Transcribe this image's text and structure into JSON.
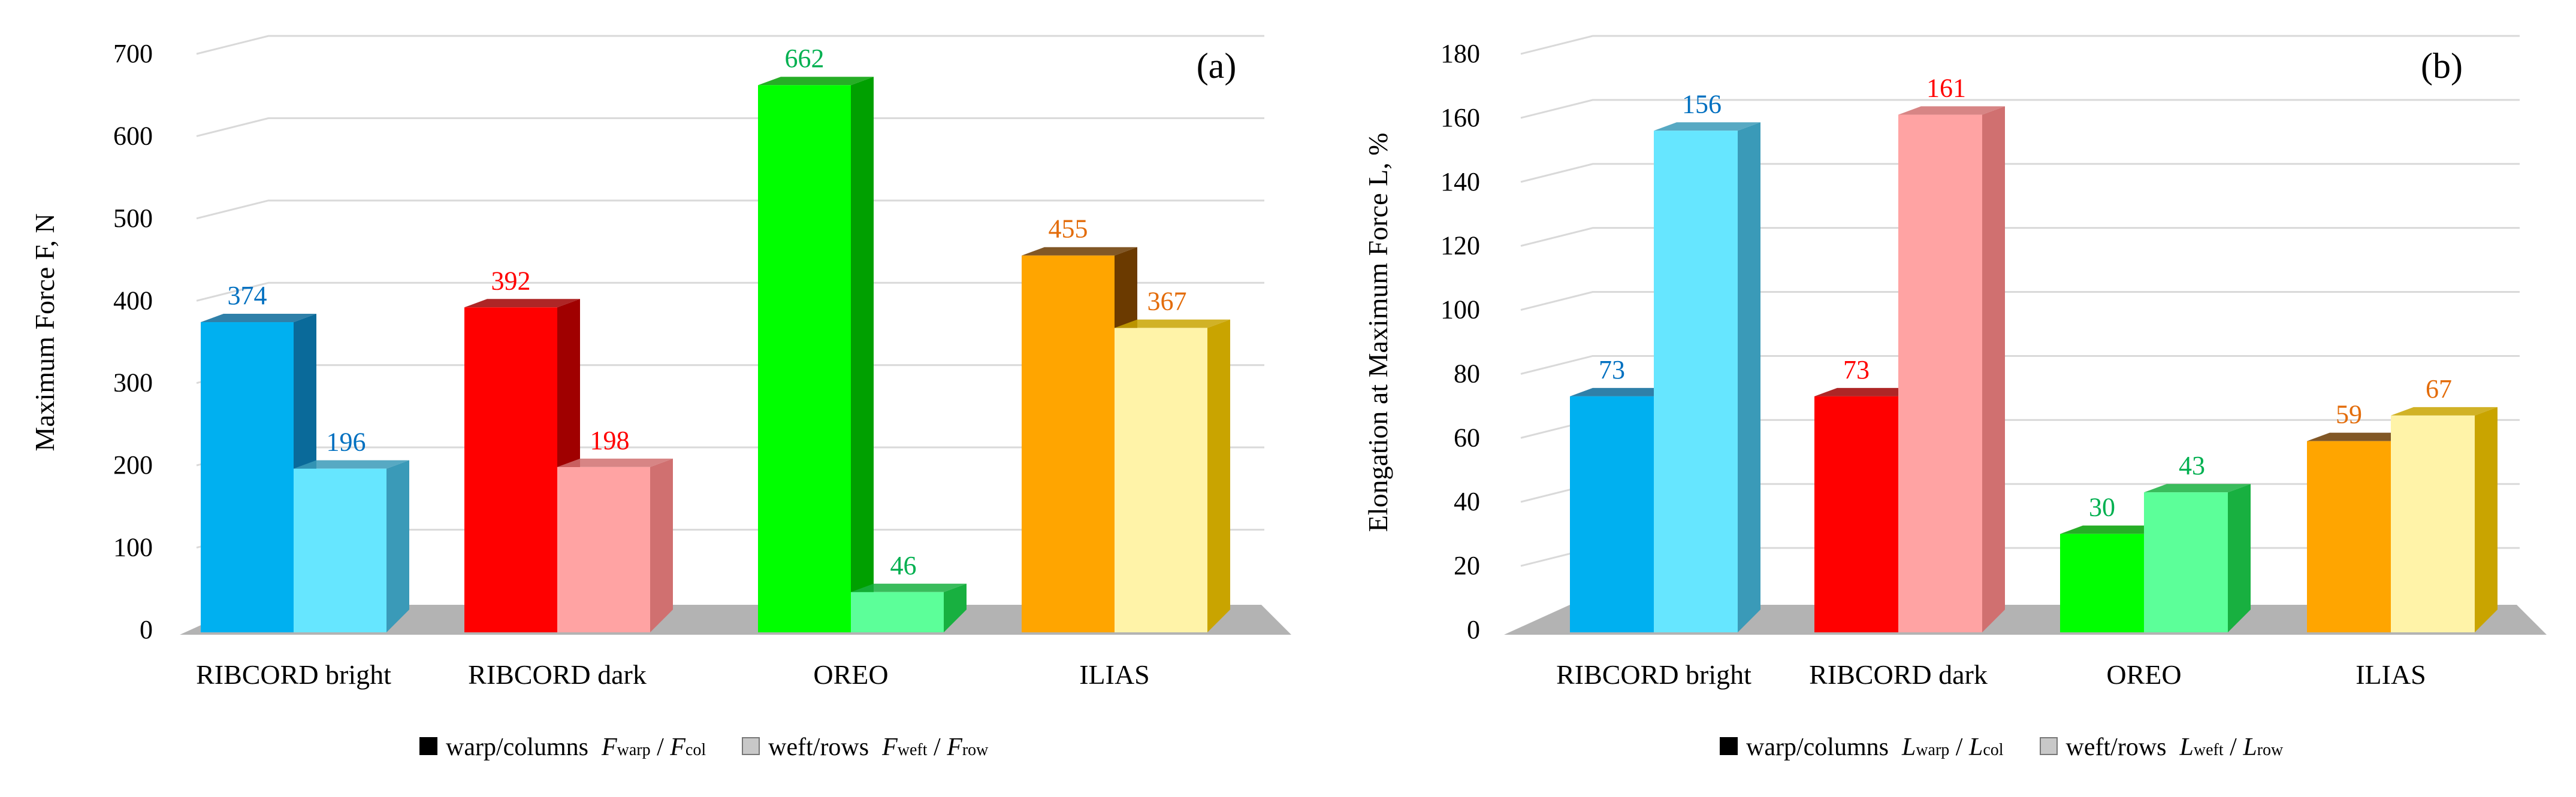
{
  "chart_data": [
    {
      "type": "bar",
      "panel_label": "(a)",
      "ylabel": "Maximum Force F, N",
      "ylim": [
        0,
        700
      ],
      "yticks": [
        0,
        100,
        200,
        300,
        400,
        500,
        600,
        700
      ],
      "categories": [
        "RIBCORD bright",
        "RIBCORD dark",
        "OREO",
        "ILIAS"
      ],
      "series": [
        {
          "name": "warp/columns F_warp / F_col",
          "values": [
            374,
            392,
            662,
            455
          ]
        },
        {
          "name": "weft/rows F_weft / F_row",
          "values": [
            196,
            198,
            46,
            367
          ]
        }
      ],
      "legend": {
        "warp_label": "warp/columns",
        "warp_sym": "F",
        "warp_sub": "warp",
        "warp_sep": " / ",
        "warp_sym2": "F",
        "warp_sub2": "col",
        "weft_label": "weft/rows",
        "weft_sym": "F",
        "weft_sub": "weft",
        "weft_sep": " / ",
        "weft_sym2": "F",
        "weft_sub2": "row"
      }
    },
    {
      "type": "bar",
      "panel_label": "(b)",
      "ylabel": "Elongation at Maximum Force L, %",
      "ylim": [
        0,
        180
      ],
      "yticks": [
        0,
        20,
        40,
        60,
        80,
        100,
        120,
        140,
        160,
        180
      ],
      "categories": [
        "RIBCORD bright",
        "RIBCORD dark",
        "OREO",
        "ILIAS"
      ],
      "series": [
        {
          "name": "warp/columns L_warp / L_col",
          "values": [
            73,
            73,
            30,
            59
          ]
        },
        {
          "name": "weft/rows L_weft / L_row",
          "values": [
            156,
            161,
            43,
            67
          ]
        }
      ],
      "legend": {
        "warp_label": "warp/columns",
        "warp_sym": "L",
        "warp_sub": "warp",
        "warp_sep": " / ",
        "warp_sym2": "L",
        "warp_sub2": "col",
        "weft_label": "weft/rows",
        "weft_sym": "L",
        "weft_sub": "weft",
        "weft_sep": " / ",
        "weft_sym2": "L",
        "weft_sub2": "row"
      }
    }
  ],
  "colors": {
    "categories": [
      {
        "warp": "#00b0f0",
        "warp_side": "#0a6a9a",
        "weft": "#66e6ff",
        "weft_side": "#3a9ab8",
        "label": "#0070c0"
      },
      {
        "warp": "#ff0000",
        "warp_side": "#a00000",
        "weft": "#ffa3a3",
        "weft_side": "#d07070",
        "label": "#ff0000"
      },
      {
        "warp": "#00ff00",
        "warp_side": "#00a000",
        "weft": "#5cff99",
        "weft_side": "#18b040",
        "label": "#00b050"
      },
      {
        "warp": "#ffa500",
        "warp_side": "#6b3a00",
        "weft": "#fff3a8",
        "weft_side": "#c9a400",
        "label": "#e36c0a"
      }
    ],
    "floor": "#b3b3b3",
    "grid": "#d9d9d9"
  }
}
